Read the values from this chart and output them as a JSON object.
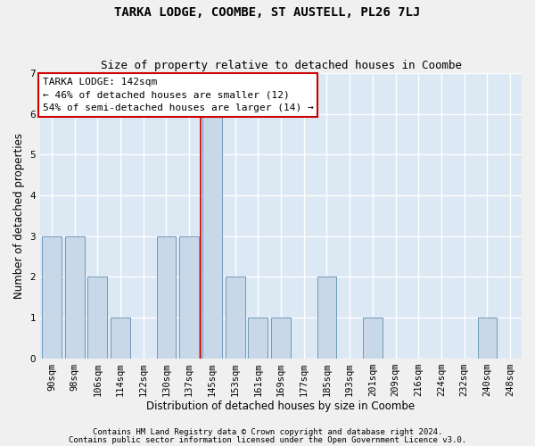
{
  "title": "TARKA LODGE, COOMBE, ST AUSTELL, PL26 7LJ",
  "subtitle": "Size of property relative to detached houses in Coombe",
  "xlabel": "Distribution of detached houses by size in Coombe",
  "ylabel": "Number of detached properties",
  "categories": [
    "90sqm",
    "98sqm",
    "106sqm",
    "114sqm",
    "122sqm",
    "130sqm",
    "137sqm",
    "145sqm",
    "153sqm",
    "161sqm",
    "169sqm",
    "177sqm",
    "185sqm",
    "193sqm",
    "201sqm",
    "209sqm",
    "216sqm",
    "224sqm",
    "232sqm",
    "240sqm",
    "248sqm"
  ],
  "values": [
    3,
    3,
    2,
    1,
    0,
    3,
    3,
    6,
    2,
    1,
    1,
    0,
    2,
    0,
    1,
    0,
    0,
    0,
    0,
    1,
    0
  ],
  "bar_color": "#c8d8e8",
  "bar_edge_color": "#7099b8",
  "highlight_index": 7,
  "vline_color": "#cc0000",
  "ylim": [
    0,
    7
  ],
  "yticks": [
    0,
    1,
    2,
    3,
    4,
    5,
    6,
    7
  ],
  "annotation_title": "TARKA LODGE: 142sqm",
  "annotation_line1": "← 46% of detached houses are smaller (12)",
  "annotation_line2": "54% of semi-detached houses are larger (14) →",
  "annotation_box_facecolor": "#ffffff",
  "annotation_box_edgecolor": "#cc0000",
  "footer1": "Contains HM Land Registry data © Crown copyright and database right 2024.",
  "footer2": "Contains public sector information licensed under the Open Government Licence v3.0.",
  "background_color": "#dce8f4",
  "grid_color": "#ffffff",
  "fig_background": "#f0f0f0",
  "title_fontsize": 10,
  "subtitle_fontsize": 9,
  "axis_label_fontsize": 8.5,
  "tick_fontsize": 7.5,
  "annotation_fontsize": 8,
  "footer_fontsize": 6.5
}
